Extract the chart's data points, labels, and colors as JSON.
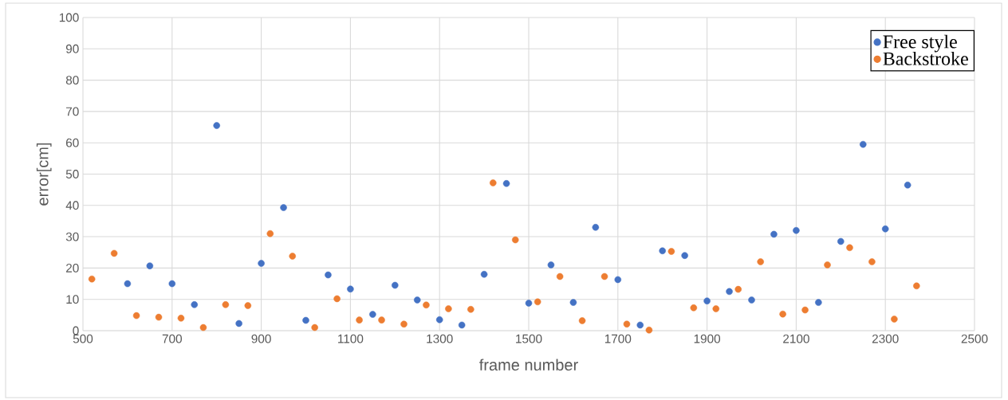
{
  "chart_data": {
    "type": "scatter",
    "xlabel": "frame number",
    "ylabel": "error[cm]",
    "xlim": [
      500,
      2500
    ],
    "xticks": [
      500,
      700,
      900,
      1100,
      1300,
      1500,
      1700,
      1900,
      2100,
      2300,
      2500
    ],
    "ylim": [
      0,
      100
    ],
    "yticks": [
      0,
      10,
      20,
      30,
      40,
      50,
      60,
      70,
      80,
      90,
      100
    ],
    "grid": true,
    "legend": "top right",
    "series": [
      {
        "name": "Free style",
        "color": "#4472c4",
        "x": [
          600,
          650,
          700,
          750,
          800,
          850,
          900,
          950,
          1000,
          1050,
          1100,
          1150,
          1200,
          1250,
          1300,
          1350,
          1400,
          1450,
          1500,
          1550,
          1600,
          1650,
          1700,
          1750,
          1800,
          1850,
          1900,
          1950,
          2000,
          2050,
          2100,
          2150,
          2200,
          2250,
          2300,
          2350
        ],
        "values": [
          15,
          20.7,
          15,
          8.3,
          65.5,
          2.3,
          21.5,
          39.3,
          3.3,
          17.8,
          13.3,
          5.2,
          14.5,
          9.8,
          3.5,
          1.8,
          18,
          47,
          8.8,
          21,
          9,
          33,
          16.3,
          1.8,
          25.5,
          24,
          9.5,
          12.5,
          9.8,
          30.8,
          32,
          9,
          28.5,
          59.5,
          32.5,
          46.5
        ]
      },
      {
        "name": "Backstroke",
        "color": "#ed7d31",
        "x": [
          520,
          570,
          620,
          670,
          720,
          770,
          820,
          870,
          920,
          970,
          1020,
          1070,
          1120,
          1170,
          1220,
          1270,
          1320,
          1370,
          1420,
          1470,
          1520,
          1570,
          1620,
          1670,
          1720,
          1770,
          1820,
          1870,
          1920,
          1970,
          2020,
          2070,
          2120,
          2170,
          2220,
          2270,
          2320,
          2370
        ],
        "values": [
          16.5,
          24.7,
          4.8,
          4.3,
          4,
          1,
          8.3,
          8,
          31,
          23.8,
          1,
          10.2,
          3.4,
          3.4,
          2.1,
          8.2,
          7,
          6.8,
          47.2,
          29,
          9.2,
          17.3,
          3.2,
          17.3,
          2.1,
          0.2,
          25.3,
          7.3,
          7,
          13.2,
          22,
          5.3,
          6.6,
          21,
          26.5,
          22,
          3.7,
          14.3
        ]
      }
    ]
  }
}
